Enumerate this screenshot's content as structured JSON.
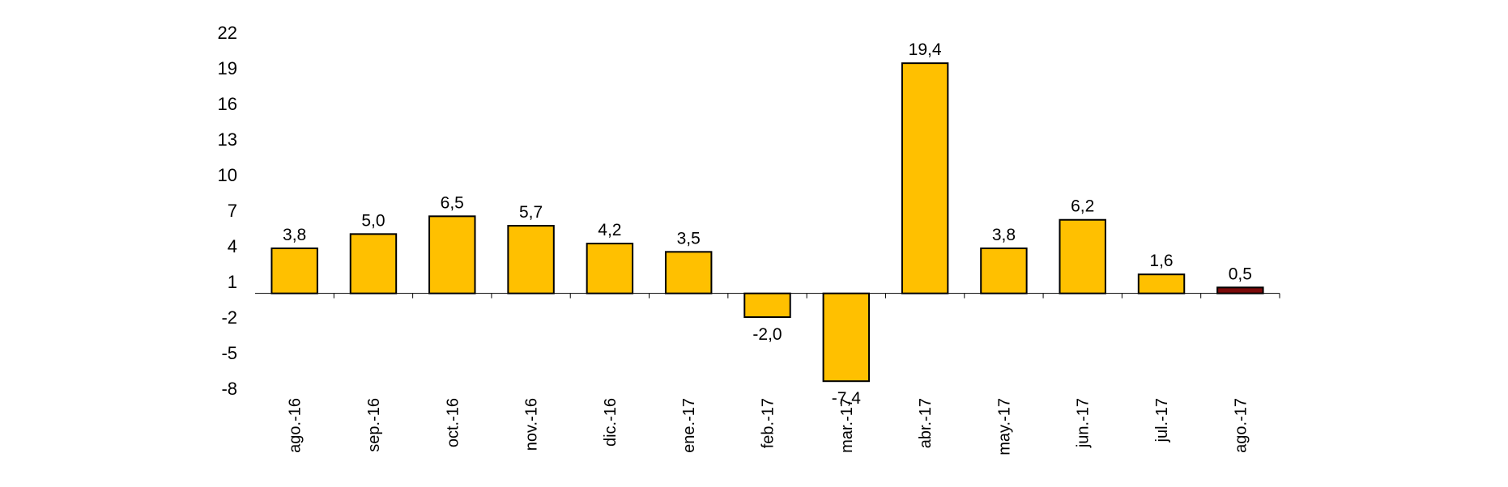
{
  "chart_data": {
    "type": "bar",
    "categories": [
      "ago.-16",
      "sep.-16",
      "oct.-16",
      "nov.-16",
      "dic.-16",
      "ene.-17",
      "feb.-17",
      "mar.-17",
      "abr.-17",
      "may.-17",
      "jun.-17",
      "jul.-17",
      "ago.-17"
    ],
    "values": [
      3.8,
      5.0,
      6.5,
      5.7,
      4.2,
      3.5,
      -2.0,
      -7.4,
      19.4,
      3.8,
      6.2,
      1.6,
      0.5
    ],
    "data_labels": [
      "3,8",
      "5,0",
      "6,5",
      "5,7",
      "4,2",
      "3,5",
      "-2,0",
      "-7,4",
      "19,4",
      "3,8",
      "6,2",
      "1,6",
      "0,5"
    ],
    "yticks": [
      22,
      19,
      16,
      13,
      10,
      7,
      4,
      1,
      -2,
      -5,
      -8
    ],
    "ytick_labels": [
      "22",
      "19",
      "16",
      "13",
      "10",
      "7",
      "4",
      "1",
      "-2",
      "-5",
      "-8"
    ],
    "ylim": [
      -8,
      22
    ],
    "grid": false,
    "bar_colors": [
      "#FFC000",
      "#FFC000",
      "#FFC000",
      "#FFC000",
      "#FFC000",
      "#FFC000",
      "#FFC000",
      "#FFC000",
      "#FFC000",
      "#FFC000",
      "#FFC000",
      "#FFC000",
      "#7B0A0A"
    ],
    "bar_outline_color": "#000000",
    "title": "",
    "xlabel": "",
    "ylabel": ""
  }
}
